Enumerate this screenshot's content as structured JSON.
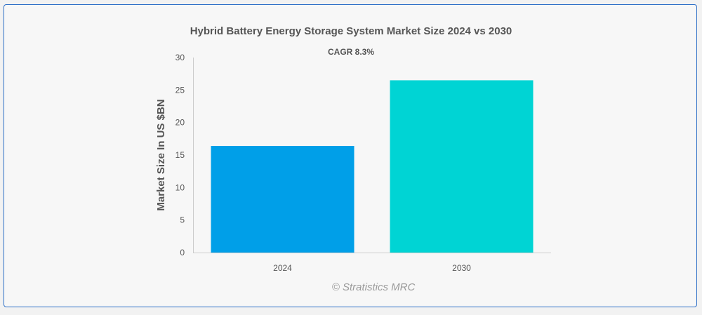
{
  "chart_data": {
    "type": "bar",
    "title": "Hybrid Battery Energy Storage System Market Size 2024 vs 2030",
    "subtitle": "CAGR 8.3%",
    "xlabel": "",
    "ylabel": "Market Size In US $BN",
    "categories": [
      "2024",
      "2030"
    ],
    "values": [
      16.4,
      26.5
    ],
    "colors": [
      "#009fe8",
      "#00d4d4"
    ],
    "ylim": [
      0,
      30
    ],
    "yticks": [
      0,
      5,
      10,
      15,
      20,
      25,
      30
    ],
    "grid": false,
    "legend": "none"
  },
  "watermark": "© Stratistics MRC"
}
